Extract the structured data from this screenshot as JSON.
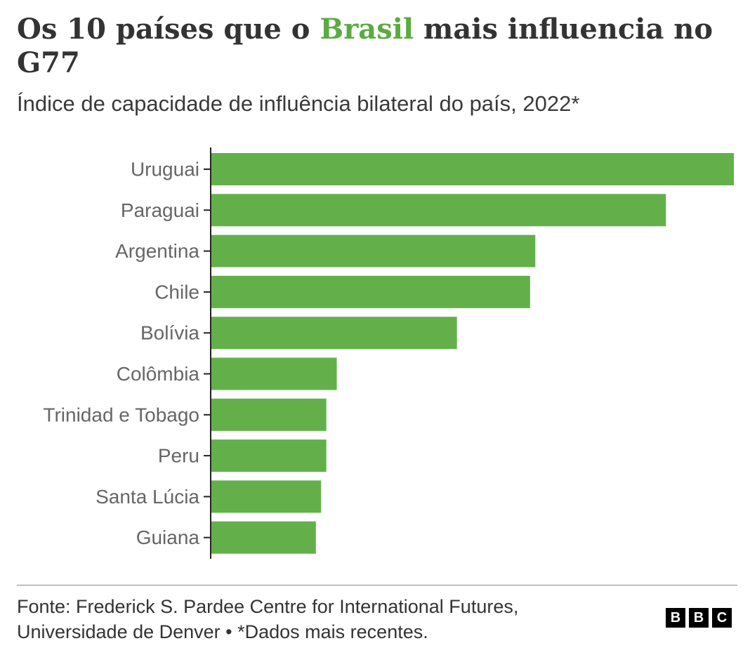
{
  "header": {
    "title_before": "Os 10 países que o ",
    "title_highlight": "Brasil",
    "title_after": " mais influencia no G77",
    "subtitle": "Índice de capacidade de influência bilateral do país, 2022*",
    "highlight_color": "#5aab40"
  },
  "chart_data": {
    "type": "bar",
    "orientation": "horizontal",
    "title": "Os 10 países que o Brasil mais influencia no G77",
    "subtitle": "Índice de capacidade de influência bilateral do país, 2022*",
    "categories": [
      "Uruguai",
      "Paraguai",
      "Argentina",
      "Chile",
      "Bolívia",
      "Colômbia",
      "Trinidad e Tobago",
      "Peru",
      "Santa Lúcia",
      "Guiana"
    ],
    "values": [
      1.0,
      0.87,
      0.62,
      0.61,
      0.47,
      0.24,
      0.22,
      0.22,
      0.21,
      0.2
    ],
    "value_scale": "relative to largest bar (no axis values shown)",
    "xlim": [
      0,
      1.0
    ],
    "grid": false,
    "bar_color": "#63b04a",
    "label_color": "#666666"
  },
  "footer": {
    "source_line1": "Fonte: Frederick S. Pardee Centre for International Futures,",
    "source_line2": "Universidade de Denver • *Dados mais recentes.",
    "logo_letters": [
      "B",
      "B",
      "C"
    ]
  }
}
